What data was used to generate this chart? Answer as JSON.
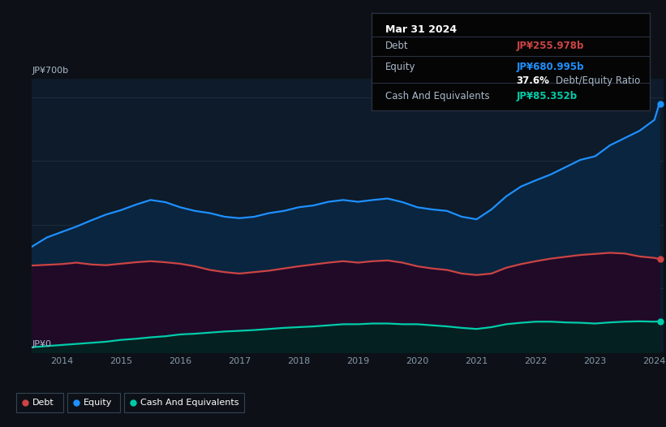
{
  "background_color": "#0d1117",
  "chart_bg_color": "#0d1b2a",
  "tooltip": {
    "date": "Mar 31 2024",
    "debt_label": "Debt",
    "debt_value": "JP¥255.978b",
    "equity_label": "Equity",
    "equity_value": "JP¥680.995b",
    "ratio_value": "37.6%",
    "ratio_label": "Debt/Equity Ratio",
    "cash_label": "Cash And Equivalents",
    "cash_value": "JP¥85.352b"
  },
  "y_label_top": "JP¥700b",
  "y_label_bottom": "JP¥0",
  "equity_color": "#1e90ff",
  "debt_color": "#cc4444",
  "cash_color": "#00ccaa",
  "equity_fill": "#0a2540",
  "debt_fill": "#200a28",
  "cash_fill": "#052020",
  "years": [
    2013.5,
    2013.75,
    2014.0,
    2014.25,
    2014.5,
    2014.75,
    2015.0,
    2015.25,
    2015.5,
    2015.75,
    2016.0,
    2016.25,
    2016.5,
    2016.75,
    2017.0,
    2017.25,
    2017.5,
    2017.75,
    2018.0,
    2018.25,
    2018.5,
    2018.75,
    2019.0,
    2019.25,
    2019.5,
    2019.75,
    2020.0,
    2020.25,
    2020.5,
    2020.75,
    2021.0,
    2021.25,
    2021.5,
    2021.75,
    2022.0,
    2022.25,
    2022.5,
    2022.75,
    2023.0,
    2023.25,
    2023.5,
    2023.75,
    2024.0,
    2024.08
  ],
  "equity": [
    290,
    315,
    330,
    345,
    362,
    378,
    390,
    405,
    418,
    412,
    398,
    388,
    382,
    372,
    368,
    372,
    382,
    388,
    398,
    403,
    413,
    418,
    413,
    418,
    422,
    412,
    398,
    392,
    388,
    372,
    365,
    392,
    428,
    455,
    472,
    488,
    508,
    528,
    538,
    568,
    588,
    608,
    638,
    681
  ],
  "debt": [
    238,
    240,
    242,
    246,
    241,
    239,
    243,
    247,
    250,
    247,
    243,
    236,
    226,
    220,
    216,
    220,
    224,
    230,
    236,
    241,
    246,
    250,
    246,
    250,
    252,
    246,
    236,
    230,
    226,
    216,
    212,
    216,
    232,
    242,
    250,
    257,
    262,
    267,
    270,
    273,
    271,
    263,
    259,
    256
  ],
  "cash": [
    14,
    17,
    20,
    23,
    26,
    29,
    34,
    37,
    41,
    44,
    49,
    51,
    54,
    57,
    59,
    61,
    64,
    67,
    69,
    71,
    74,
    77,
    77,
    79,
    79,
    77,
    77,
    74,
    71,
    67,
    64,
    69,
    77,
    81,
    84,
    84,
    82,
    81,
    79,
    82,
    84,
    85,
    84,
    85
  ],
  "legend": [
    {
      "label": "Debt",
      "color": "#cc4444"
    },
    {
      "label": "Equity",
      "color": "#1e90ff"
    },
    {
      "label": "Cash And Equivalents",
      "color": "#00ccaa"
    }
  ]
}
